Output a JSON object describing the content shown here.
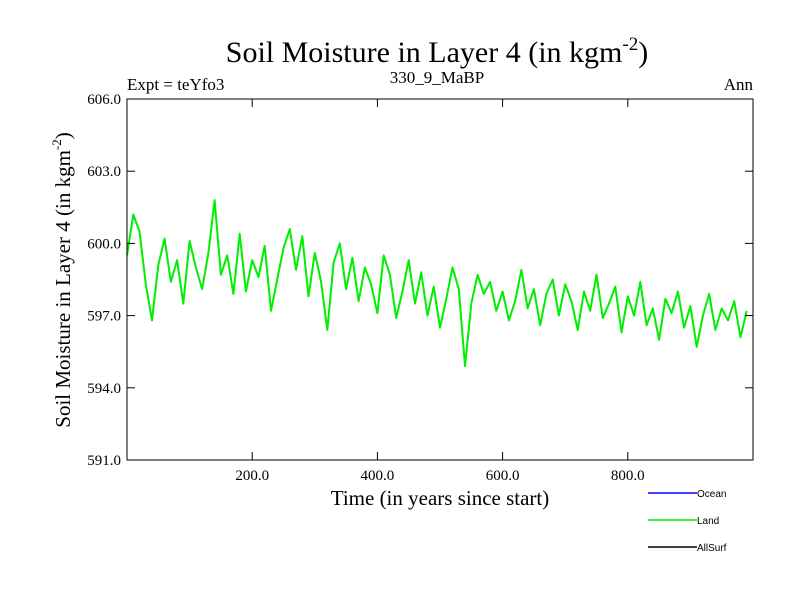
{
  "chart_data": {
    "type": "line",
    "title": "Soil Moisture in Layer 4 (in kgm",
    "title_sup": "-2",
    "title_close": ")",
    "subtitle_left": "Expt = teYfo3",
    "subtitle_center": "330_9_MaBP",
    "subtitle_right": "Ann",
    "xlabel": "Time (in years since start)",
    "ylabel": "Soil Moisture in Layer 4 (in kgm",
    "ylabel_sup": "-2",
    "ylabel_close": ")",
    "xlim": [
      0,
      1000
    ],
    "ylim": [
      591.0,
      606.0
    ],
    "xticks": [
      200,
      400,
      600,
      800
    ],
    "xtick_labels": [
      "200.0",
      "400.0",
      "600.0",
      "800.0"
    ],
    "yticks": [
      591,
      594,
      597,
      600,
      603,
      606
    ],
    "ytick_labels": [
      "591.0",
      "594.0",
      "597.0",
      "600.0",
      "603.0",
      "606.0"
    ],
    "legend": [
      {
        "label": "Ocean",
        "color": "#0000ff"
      },
      {
        "label": "Land",
        "color": "#00ee00"
      },
      {
        "label": "AllSurf",
        "color": "#000000"
      }
    ],
    "series": [
      {
        "name": "Land",
        "color": "#00ee00",
        "x_start": 0,
        "x_step": 10,
        "values": [
          599.5,
          601.2,
          600.5,
          598.3,
          596.8,
          599.1,
          600.2,
          598.4,
          599.3,
          597.5,
          600.1,
          599.0,
          598.1,
          599.6,
          601.8,
          598.7,
          599.5,
          597.9,
          600.4,
          598.0,
          599.3,
          598.6,
          599.9,
          597.2,
          598.5,
          599.8,
          600.6,
          598.9,
          600.3,
          597.8,
          599.6,
          598.4,
          596.4,
          599.2,
          600.0,
          598.1,
          599.4,
          597.6,
          599.0,
          598.3,
          597.1,
          599.5,
          598.7,
          596.9,
          598.0,
          599.3,
          597.5,
          598.8,
          597.0,
          598.2,
          596.5,
          597.7,
          599.0,
          598.1,
          594.9,
          597.5,
          598.7,
          597.9,
          598.4,
          597.2,
          598.0,
          596.8,
          597.6,
          598.9,
          597.3,
          598.1,
          596.6,
          597.9,
          598.5,
          597.0,
          598.3,
          597.6,
          596.4,
          598.0,
          597.2,
          598.7,
          596.9,
          597.5,
          598.2,
          596.3,
          597.8,
          597.0,
          598.4,
          596.6,
          597.3,
          596.0,
          597.7,
          597.1,
          598.0,
          596.5,
          597.4,
          595.7,
          597.0,
          597.9,
          596.4,
          597.3,
          596.8,
          597.6,
          596.1,
          597.2
        ]
      }
    ]
  }
}
